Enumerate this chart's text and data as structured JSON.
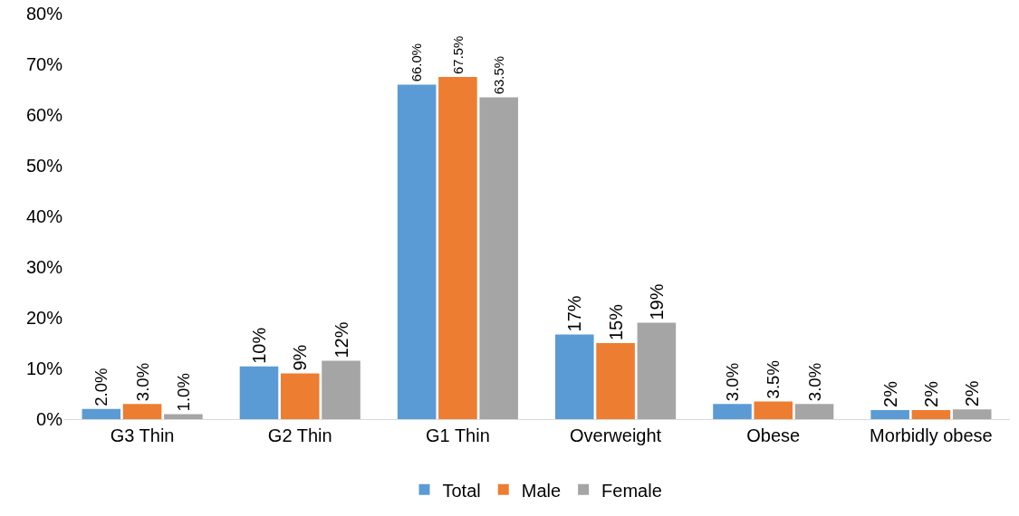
{
  "chart_data": {
    "type": "bar",
    "categories": [
      "G3 Thin",
      "G2 Thin",
      "G1 Thin",
      "Overweight",
      "Obese",
      "Morbidly obese"
    ],
    "series": [
      {
        "name": "Total",
        "color": "#5b9bd5",
        "values": [
          2.0,
          10.4,
          66.0,
          16.7,
          3.0,
          1.8
        ],
        "value_labels": [
          "2.0%",
          "10%",
          "66.0%",
          "17%",
          "3.0%",
          "2%"
        ]
      },
      {
        "name": "Male",
        "color": "#ed7d31",
        "values": [
          3.0,
          9.0,
          67.5,
          15.0,
          3.5,
          1.8
        ],
        "value_labels": [
          "3.0%",
          "9%",
          "67.5%",
          "15%",
          "3.5%",
          "2%"
        ]
      },
      {
        "name": "Female",
        "color": "#a5a5a5",
        "values": [
          1.0,
          11.5,
          63.5,
          19.0,
          3.0,
          1.9
        ],
        "value_labels": [
          "1.0%",
          "12%",
          "63.5%",
          "19%",
          "3.0%",
          "2%"
        ]
      }
    ],
    "ylim": [
      0,
      80
    ],
    "yticks": [
      {
        "value": 0,
        "label": "0%"
      },
      {
        "value": 10,
        "label": "10%"
      },
      {
        "value": 20,
        "label": "20%"
      },
      {
        "value": 30,
        "label": "30%"
      },
      {
        "value": 40,
        "label": "40%"
      },
      {
        "value": 50,
        "label": "50%"
      },
      {
        "value": 60,
        "label": "60%"
      },
      {
        "value": 70,
        "label": "70%"
      },
      {
        "value": 80,
        "label": "80%"
      }
    ],
    "grid": false,
    "legend": "bottom"
  }
}
